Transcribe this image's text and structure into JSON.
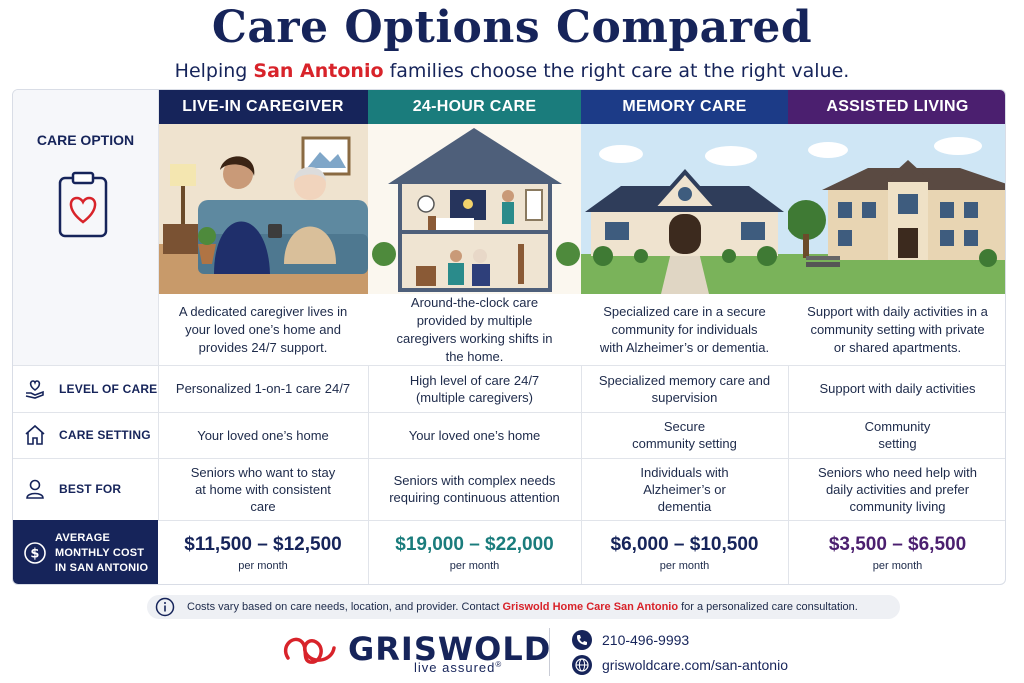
{
  "header": {
    "title": "Care Options Compared",
    "subtitle_pre": "Helping",
    "subtitle_highlight": "San Antonio",
    "subtitle_post": "families choose the right care at the right value."
  },
  "table": {
    "care_option_label": "CARE OPTION",
    "row_labels": {
      "level": "LEVEL OF CARE",
      "setting": "CARE SETTING",
      "best_for": "BEST FOR",
      "cost_line1": "AVERAGE",
      "cost_line2": "MONTHLY COST",
      "cost_line3": "IN SAN ANTONIO"
    },
    "per_month": "per month",
    "options": [
      {
        "name": "LIVE-IN CAREGIVER",
        "color": "#16245a",
        "description": "A dedicated caregiver lives in your loved one’s home and provides 24/7 support.",
        "level": "Personalized 1-on-1 care 24/7",
        "setting": "Your loved one’s home",
        "best_for": "Seniors who want to stay at home with consistent care",
        "price": "$11,500 – $12,500",
        "price_color": "#16245a"
      },
      {
        "name": "24-HOUR CARE",
        "color": "#1a7c7c",
        "description": "Around-the-clock care provided by multiple caregivers working shifts in the home.",
        "level": "High level of care 24/7 (multiple caregivers)",
        "setting": "Your loved one’s home",
        "best_for": "Seniors with complex needs requiring continuous attention",
        "price": "$19,000 – $22,000",
        "price_color": "#1a7c7c"
      },
      {
        "name": "MEMORY CARE",
        "color": "#1c3b87",
        "description": "Specialized care in a secure community for individuals with Alzheimer’s or dementia.",
        "level": "Specialized memory care and supervision",
        "setting": "Secure community setting",
        "best_for": "Individuals with Alzheimer’s or dementia",
        "price": "$6,000 – $10,500",
        "price_color": "#16245a"
      },
      {
        "name": "ASSISTED LIVING",
        "color": "#4b1f6f",
        "description": "Support with daily activities in a community setting with private or shared apartments.",
        "level": "Support with daily activities",
        "setting": "Community setting",
        "best_for": "Seniors who need help with daily activities and prefer community living",
        "price": "$3,500 – $6,500",
        "price_color": "#4b1f6f"
      }
    ]
  },
  "note": {
    "text_pre": "Costs vary based on care needs, location, and provider. Contact",
    "link": "Griswold Home Care San Antonio",
    "text_post": "for a personalized care consultation."
  },
  "footer": {
    "brand": "GRISWOLD",
    "tagline": "live assured",
    "trademark": "®",
    "phone": "210-496-9993",
    "website": "griswoldcare.com/san-antonio"
  }
}
